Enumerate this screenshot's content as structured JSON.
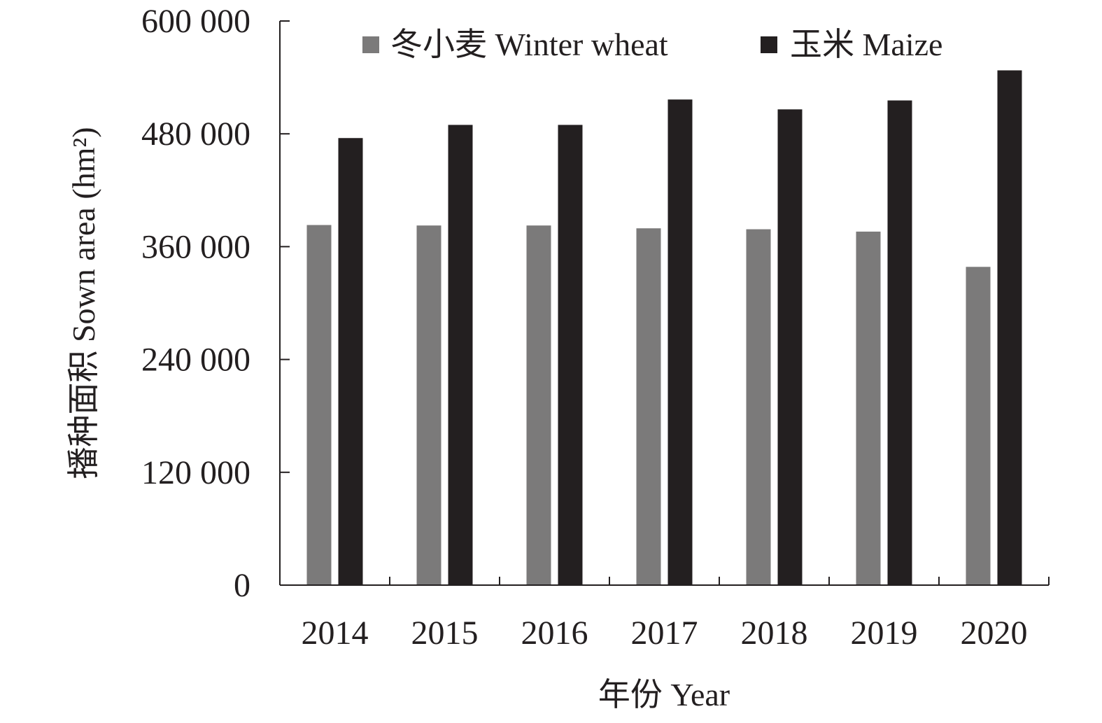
{
  "chart_data": {
    "type": "bar",
    "categories": [
      "2014",
      "2015",
      "2016",
      "2017",
      "2018",
      "2019",
      "2020"
    ],
    "series": [
      {
        "name": "冬小麦 Winter wheat",
        "color": "#7b7a7a",
        "values": [
          383000,
          382500,
          382500,
          379500,
          378500,
          376000,
          338500
        ]
      },
      {
        "name": "玉米 Maize",
        "color": "#231f20",
        "values": [
          475500,
          489500,
          489500,
          516500,
          506000,
          515500,
          547500
        ]
      }
    ],
    "title": "",
    "xlabel": "年份 Year",
    "ylabel": "播种面积 Sown area (hm²)",
    "ylim": [
      0,
      600000
    ],
    "yticks": [
      0,
      120000,
      240000,
      360000,
      480000,
      600000
    ],
    "ytick_labels": [
      "0",
      "120 000",
      "240 000",
      "360 000",
      "480 000",
      "600 000"
    ],
    "legend_position": "top",
    "grid": false
  }
}
